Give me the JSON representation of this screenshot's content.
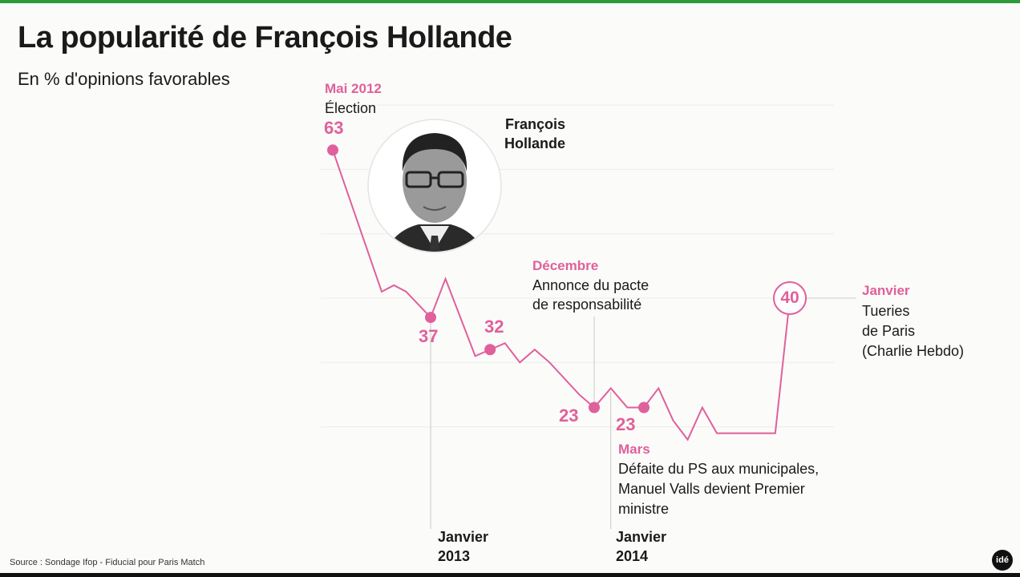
{
  "title": "La popularité de François Hollande",
  "subtitle": "En % d'opinions favorables",
  "source": "Source : Sondage Ifop - Fiducial pour Paris Match",
  "logo": "idé",
  "portrait_caption": "François Hollande",
  "colors": {
    "accent": "#e0609c",
    "top_bar": "#2e9a3a",
    "gridline": "#ececea"
  },
  "annotations": {
    "may2012": {
      "month": "Mai 2012",
      "event": "Élection",
      "value": "63"
    },
    "jan2013": {
      "value": "37",
      "axis_label_1": "Janvier",
      "axis_label_2": "2013"
    },
    "may2013": {
      "value": "32"
    },
    "dec2013": {
      "month": "Décembre",
      "event_1": "Annonce du pacte",
      "event_2": "de responsabilité",
      "value": "23"
    },
    "jan2014": {
      "axis_label_1": "Janvier",
      "axis_label_2": "2014"
    },
    "mar2014": {
      "value": "23",
      "month": "Mars",
      "event_1": "Défaite du PS aux municipales,",
      "event_2": "Manuel Valls devient Premier",
      "event_3": "ministre"
    },
    "jan2015": {
      "value": "40",
      "month": "Janvier",
      "event_1": "Tueries",
      "event_2": "de Paris",
      "event_3": "(Charlie Hebdo)"
    }
  },
  "chart_data": {
    "type": "line",
    "title": "La popularité de François Hollande",
    "subtitle": "En % d'opinions favorables",
    "xlabel": "",
    "ylabel": "",
    "ylim": [
      15,
      72
    ],
    "grid": true,
    "gridlines_y": [
      20,
      30,
      40,
      50,
      60,
      70
    ],
    "series": [
      {
        "x": [
          "2012-05",
          "2012-09",
          "2012-10",
          "2012-11",
          "2013-01",
          "2013-02",
          "2013-04",
          "2013-05",
          "2013-06",
          "2013-07",
          "2013-08",
          "2013-09",
          "2013-11",
          "2013-12",
          "2014-01",
          "2014-02",
          "2014-03",
          "2014-04",
          "2014-05",
          "2014-06",
          "2014-07",
          "2014-08",
          "2014-12",
          "2015-01"
        ],
        "values": [
          63,
          41,
          42,
          41,
          37,
          43,
          31,
          32,
          33,
          30,
          32,
          30,
          25,
          23,
          26,
          23,
          23,
          26,
          21,
          18,
          23,
          19,
          19,
          40
        ]
      }
    ],
    "highlighted_points": [
      {
        "x": "2012-05",
        "value": 63
      },
      {
        "x": "2013-01",
        "value": 37
      },
      {
        "x": "2013-05",
        "value": 32
      },
      {
        "x": "2013-12",
        "value": 23
      },
      {
        "x": "2014-03",
        "value": 23
      },
      {
        "x": "2015-01",
        "value": 40
      }
    ]
  }
}
